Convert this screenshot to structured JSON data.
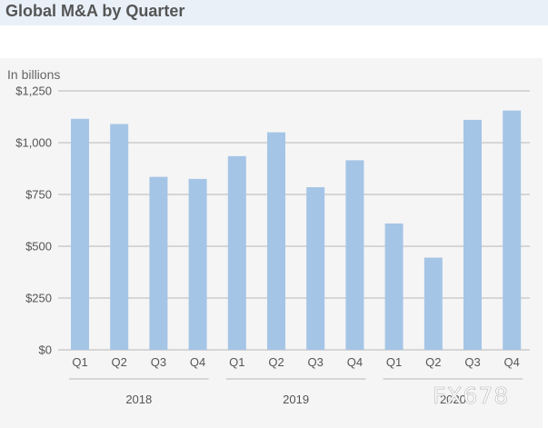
{
  "chart_data": {
    "type": "bar",
    "title": "Global M&A by Quarter",
    "ylabel": "In billions",
    "xlabel": "",
    "ylim": [
      0,
      1250
    ],
    "yticks": [
      0,
      250,
      500,
      750,
      1000,
      1250
    ],
    "ytick_labels": [
      "$0",
      "$250",
      "$500",
      "$750",
      "$1,000",
      "$1,250"
    ],
    "grid": true,
    "categories": [
      "Q1",
      "Q2",
      "Q3",
      "Q4",
      "Q1",
      "Q2",
      "Q3",
      "Q4",
      "Q1",
      "Q2",
      "Q3",
      "Q4"
    ],
    "groups": [
      {
        "label": "2018",
        "count": 4
      },
      {
        "label": "2019",
        "count": 4
      },
      {
        "label": "2020",
        "count": 4
      }
    ],
    "values": [
      1115,
      1090,
      835,
      825,
      935,
      1050,
      785,
      915,
      610,
      445,
      1110,
      1155
    ],
    "bar_color": "#a5c5e6"
  },
  "watermark": "FX678"
}
